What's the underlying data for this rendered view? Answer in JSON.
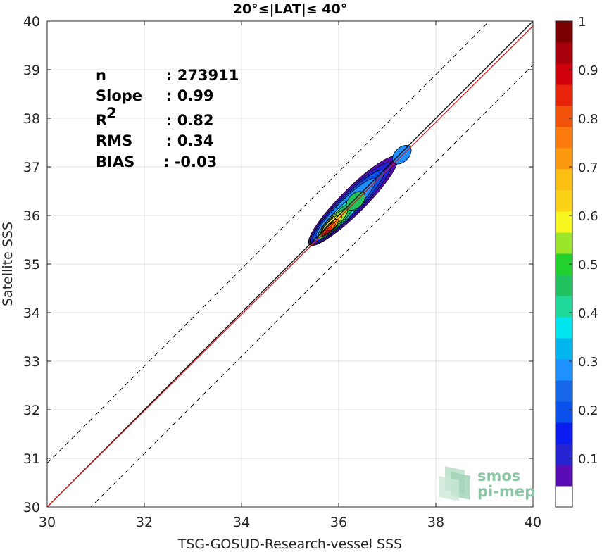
{
  "chart_data": {
    "type": "contour-density-scatter",
    "title": "20°≤|LAT|≤ 40°",
    "xlabel": "TSG-GOSUD-Research-vessel SSS",
    "ylabel": "Satellite SSS",
    "xlim": [
      30,
      40
    ],
    "ylim": [
      30,
      40
    ],
    "xticks": [
      "30",
      "32",
      "34",
      "36",
      "38",
      "40"
    ],
    "yticks": [
      "30",
      "31",
      "32",
      "33",
      "34",
      "35",
      "36",
      "37",
      "38",
      "39",
      "40"
    ],
    "grid": true,
    "stats": [
      {
        "label": "n",
        "value": ": 273911"
      },
      {
        "label": "Slope",
        "value": ": 0.99"
      },
      {
        "label": "R",
        "sup": "2",
        "value": ": 0.82"
      },
      {
        "label": "RMS",
        "value": ": 0.34"
      },
      {
        "label": "BIAS",
        "value": ": -0.03"
      }
    ],
    "lines": {
      "identity": {
        "x": [
          30,
          40
        ],
        "y": [
          30,
          40
        ],
        "color": "#000000"
      },
      "regression": {
        "slope": 0.99,
        "x": [
          30,
          40
        ],
        "y": [
          30.0,
          39.9
        ],
        "color": "#d7191c"
      },
      "upper_bound": {
        "x": [
          30,
          40
        ],
        "y": [
          30.9,
          40.9
        ],
        "style": "dashed",
        "color": "#000000"
      },
      "lower_bound": {
        "x": [
          30,
          40
        ],
        "y": [
          29.1,
          39.1
        ],
        "style": "dashed",
        "color": "#000000"
      }
    },
    "density_levels": [
      {
        "level": 0.05,
        "color": "#5a0cb4",
        "center": [
          36.3,
          36.3
        ],
        "axis_len": 1.8,
        "axis_wid": 0.36
      },
      {
        "level": 0.1,
        "color": "#2323d2",
        "center": [
          36.25,
          36.25
        ],
        "axis_len": 1.65,
        "axis_wid": 0.31
      },
      {
        "level": 0.2,
        "color": "#0a50eb",
        "center": [
          36.2,
          36.2
        ],
        "axis_len": 1.45,
        "axis_wid": 0.27
      },
      {
        "level": 0.3,
        "color": "#1e90ff",
        "center": [
          36.15,
          36.15
        ],
        "axis_len": 1.2,
        "axis_wid": 0.23
      },
      {
        "level": 0.4,
        "color": "#00e5ee",
        "center": [
          36.05,
          36.0
        ],
        "axis_len": 0.95,
        "axis_wid": 0.2
      },
      {
        "level": 0.5,
        "color": "#21c25f",
        "center": [
          35.95,
          35.9
        ],
        "axis_len": 0.75,
        "axis_wid": 0.17
      },
      {
        "level": 0.6,
        "color": "#9be52b",
        "center": [
          35.9,
          35.85
        ],
        "axis_len": 0.55,
        "axis_wid": 0.14
      },
      {
        "level": 0.65,
        "color": "#f7f71e",
        "center": [
          35.85,
          35.8
        ],
        "axis_len": 0.42,
        "axis_wid": 0.12
      },
      {
        "level": 0.7,
        "color": "#fbbf12",
        "center": [
          35.82,
          35.75
        ],
        "axis_len": 0.33,
        "axis_wid": 0.1
      },
      {
        "level": 0.8,
        "color": "#fb7c0c",
        "center": [
          35.8,
          35.72
        ],
        "axis_len": 0.25,
        "axis_wid": 0.08
      },
      {
        "level": 0.9,
        "color": "#e8230a",
        "center": [
          35.78,
          35.68
        ],
        "axis_len": 0.16,
        "axis_wid": 0.06
      },
      {
        "level": 1.0,
        "color": "#a8000a",
        "center": [
          35.76,
          35.65
        ],
        "axis_len": 0.09,
        "axis_wid": 0.04
      }
    ],
    "secondary_peaks": [
      {
        "center": [
          36.35,
          36.3
        ],
        "color": "#21c25f"
      },
      {
        "center": [
          37.3,
          37.25
        ],
        "color": "#1e90ff"
      }
    ],
    "colorbar": {
      "ticks": [
        "0.1",
        "0.2",
        "0.3",
        "0.4",
        "0.5",
        "0.6",
        "0.7",
        "0.8",
        "0.9",
        "1"
      ],
      "range": [
        0,
        1
      ],
      "colors": [
        "#ffffff",
        "#5a0cb4",
        "#2323d2",
        "#0a1cf0",
        "#0a50eb",
        "#1666e8",
        "#1e90ff",
        "#00b8ee",
        "#00e5ee",
        "#1fd99a",
        "#21c25f",
        "#21d22f",
        "#9be52b",
        "#f7f71e",
        "#fbd315",
        "#fbbf12",
        "#fb990f",
        "#fb7c0c",
        "#f0520a",
        "#e8230a",
        "#d0000a",
        "#a8000a",
        "#7a0000"
      ]
    }
  },
  "logo": {
    "line1": "smos",
    "line2": "pi-mep"
  }
}
